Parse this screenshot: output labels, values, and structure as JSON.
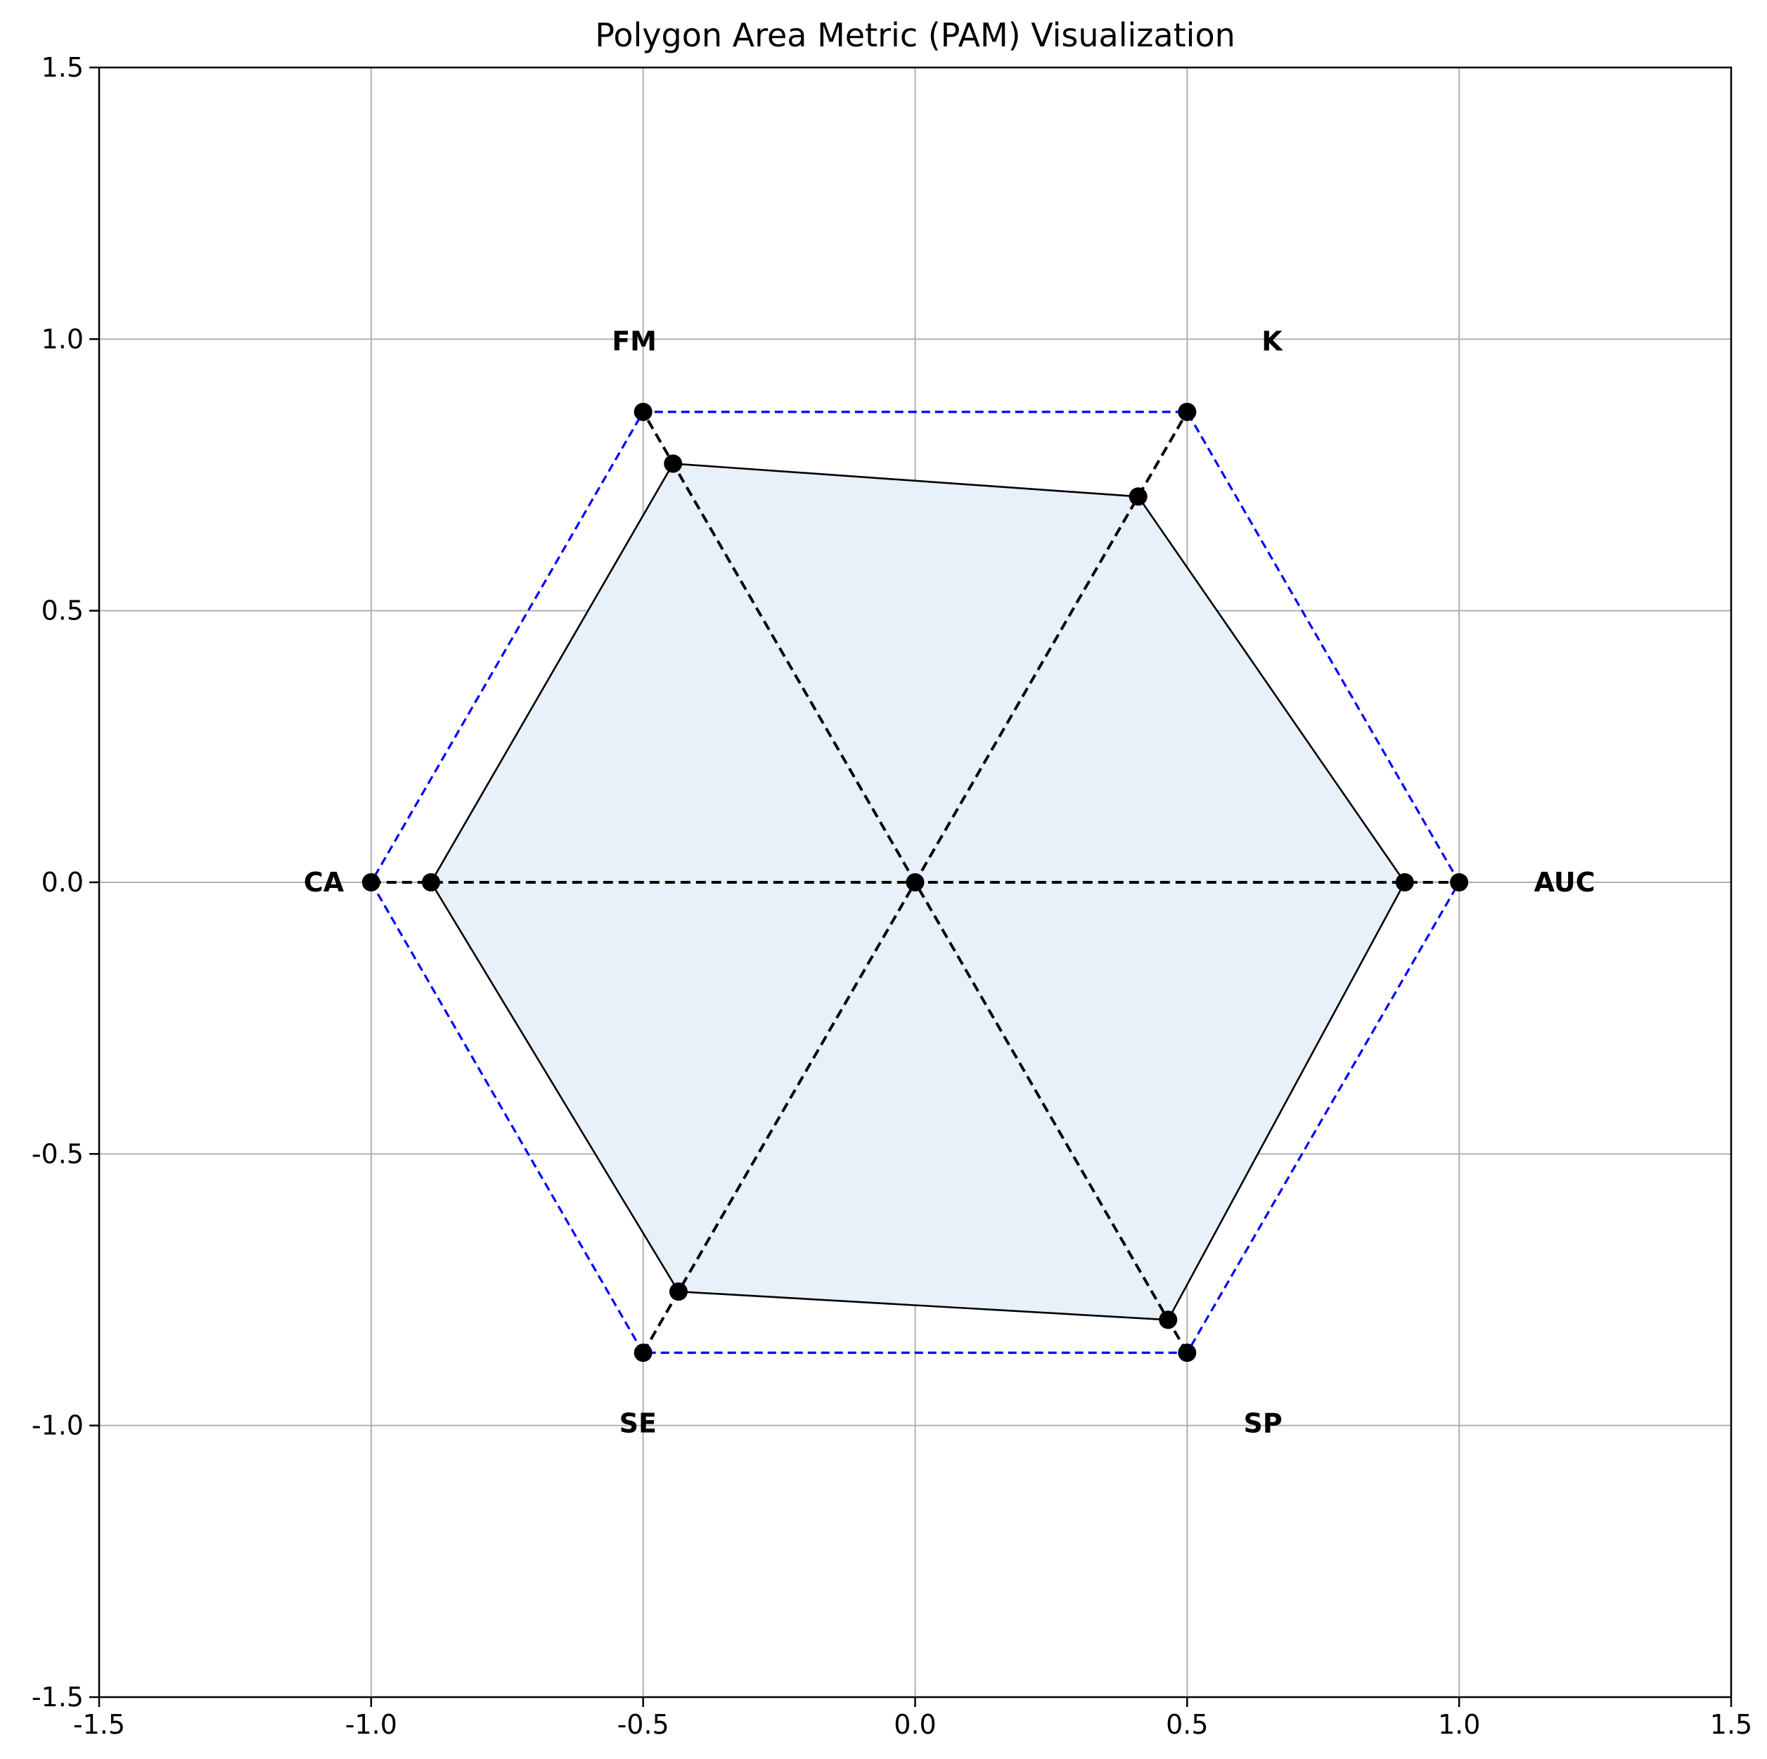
{
  "chart_data": {
    "type": "radar",
    "title": "Polygon Area Metric (PAM) Visualization",
    "xlabel": "",
    "ylabel": "",
    "xlim": [
      -1.5,
      1.5
    ],
    "ylim": [
      -1.5,
      1.5
    ],
    "grid": true,
    "x_ticks": [
      "-1.5",
      "-1.0",
      "-0.5",
      "0.0",
      "0.5",
      "1.0",
      "1.5"
    ],
    "y_ticks": [
      "1.5",
      "1.0",
      "0.5",
      "0.0",
      "-0.5",
      "-1.0",
      "-1.5"
    ],
    "metrics": [
      {
        "name": "CA",
        "angle_deg": 180,
        "value": 0.89
      },
      {
        "name": "SE",
        "angle_deg": 240,
        "value": 0.87
      },
      {
        "name": "SP",
        "angle_deg": 300,
        "value": 0.93
      },
      {
        "name": "AUC",
        "angle_deg": 0,
        "value": 0.9
      },
      {
        "name": "K",
        "angle_deg": 60,
        "value": 0.82
      },
      {
        "name": "FM",
        "angle_deg": 120,
        "value": 0.89
      }
    ],
    "reference_hexagon_radius": 1.0,
    "colors": {
      "fill": "#e8f0fa",
      "outline": "#000000",
      "reference": "#0000ff",
      "spokes": "#000000",
      "points": "#000000",
      "grid": "#b0b0b0"
    }
  }
}
